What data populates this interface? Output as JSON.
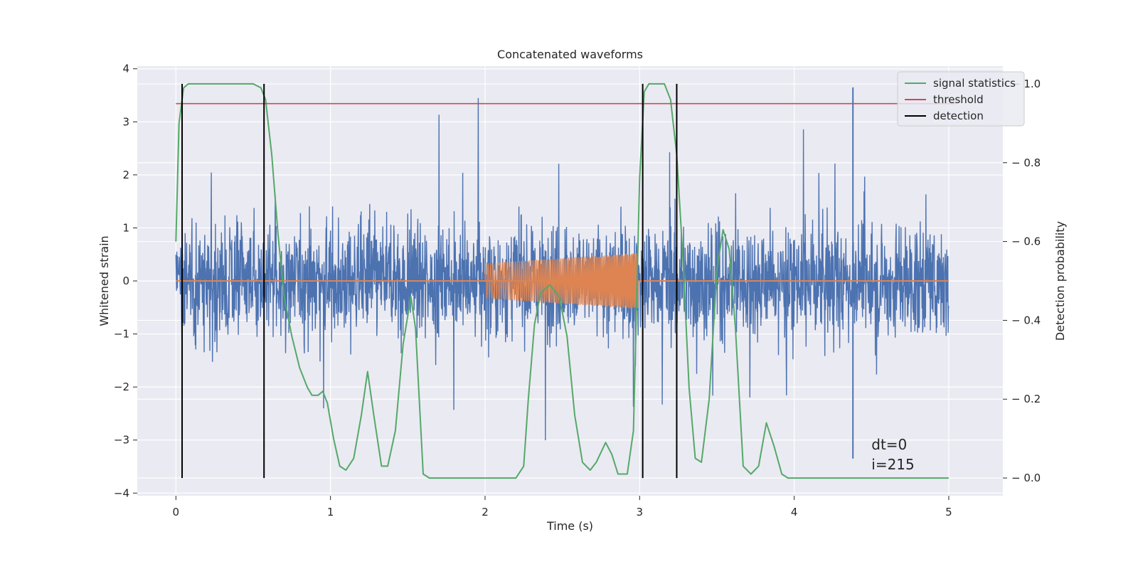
{
  "chart_data": {
    "type": "line",
    "title": "Concatenated waveforms",
    "xlabel": "Time (s)",
    "ylabel": "Whitened strain",
    "y2label": "Detection probability",
    "xlim": [
      -0.25,
      5.35
    ],
    "ylim": [
      -4.05,
      4.05
    ],
    "y2lim": [
      -0.045,
      1.045
    ],
    "xticks": [
      0,
      1,
      2,
      3,
      4,
      5
    ],
    "yticks": [
      -4,
      -3,
      -2,
      -1,
      0,
      1,
      2,
      3,
      4
    ],
    "y2ticks": [
      0.0,
      0.2,
      0.4,
      0.6,
      0.8,
      1.0
    ],
    "y2tick_labels": [
      "0.0",
      "0.2",
      "0.4",
      "0.6",
      "0.8",
      "1.0"
    ],
    "grid": true,
    "legend_position": "top-right",
    "colors": {
      "strain": "#4c72b0",
      "injection": "#dd8452",
      "signal_statistics": "#55a868",
      "threshold": "#c44e52",
      "detection": "#000000",
      "background": "#eaeaf2",
      "grid": "#ffffff"
    },
    "series": [
      {
        "name": "strain",
        "axis": "left",
        "x_range": [
          0,
          5
        ],
        "typical_envelope": [
          -0.75,
          0.72
        ],
        "peak_range": [
          -3.35,
          3.65
        ]
      },
      {
        "name": "injection",
        "axis": "left",
        "x_range": [
          2.0,
          2.99
        ],
        "amplitude_start": 0.33,
        "amplitude_end": 0.53
      },
      {
        "name": "signal statistics",
        "axis": "right",
        "x": [
          0.0,
          0.02,
          0.05,
          0.08,
          0.12,
          0.2,
          0.3,
          0.4,
          0.5,
          0.55,
          0.58,
          0.62,
          0.66,
          0.7,
          0.75,
          0.8,
          0.85,
          0.88,
          0.92,
          0.95,
          0.98,
          1.02,
          1.06,
          1.1,
          1.15,
          1.2,
          1.24,
          1.28,
          1.33,
          1.37,
          1.42,
          1.47,
          1.52,
          1.55,
          1.6,
          1.64,
          1.7,
          1.8,
          2.0,
          2.2,
          2.25,
          2.28,
          2.32,
          2.36,
          2.42,
          2.48,
          2.53,
          2.58,
          2.63,
          2.68,
          2.72,
          2.78,
          2.82,
          2.86,
          2.92,
          2.96,
          3.0,
          3.03,
          3.06,
          3.1,
          3.16,
          3.2,
          3.24,
          3.28,
          3.32,
          3.36,
          3.4,
          3.45,
          3.5,
          3.54,
          3.58,
          3.62,
          3.67,
          3.72,
          3.77,
          3.82,
          3.87,
          3.92,
          3.96,
          4.05,
          4.5,
          5.0
        ],
        "values": [
          0.6,
          0.9,
          0.99,
          1.0,
          1.0,
          1.0,
          1.0,
          1.0,
          1.0,
          0.99,
          0.96,
          0.82,
          0.62,
          0.46,
          0.36,
          0.28,
          0.23,
          0.21,
          0.21,
          0.22,
          0.19,
          0.1,
          0.03,
          0.02,
          0.05,
          0.16,
          0.27,
          0.16,
          0.03,
          0.03,
          0.12,
          0.34,
          0.46,
          0.38,
          0.01,
          0.0,
          0.0,
          0.0,
          0.0,
          0.0,
          0.03,
          0.2,
          0.39,
          0.47,
          0.49,
          0.46,
          0.36,
          0.16,
          0.04,
          0.02,
          0.04,
          0.09,
          0.06,
          0.01,
          0.01,
          0.12,
          0.76,
          0.98,
          1.0,
          1.0,
          1.0,
          0.96,
          0.82,
          0.56,
          0.23,
          0.05,
          0.04,
          0.2,
          0.53,
          0.63,
          0.58,
          0.38,
          0.03,
          0.01,
          0.03,
          0.14,
          0.08,
          0.01,
          0.0,
          0.0,
          0.0,
          0.0
        ]
      },
      {
        "name": "threshold",
        "axis": "right",
        "x": [
          0,
          5.05
        ],
        "values": [
          0.95,
          0.95
        ]
      },
      {
        "name": "detection",
        "axis": "right",
        "type": "vlines",
        "x": [
          0.04,
          0.57,
          3.02,
          3.24
        ],
        "ymin": 0.0,
        "ymax": 1.0
      }
    ],
    "legend": [
      "signal statistics",
      "threshold",
      "detection"
    ],
    "annotation": {
      "lines": [
        "dt=0",
        "i=215"
      ]
    }
  }
}
